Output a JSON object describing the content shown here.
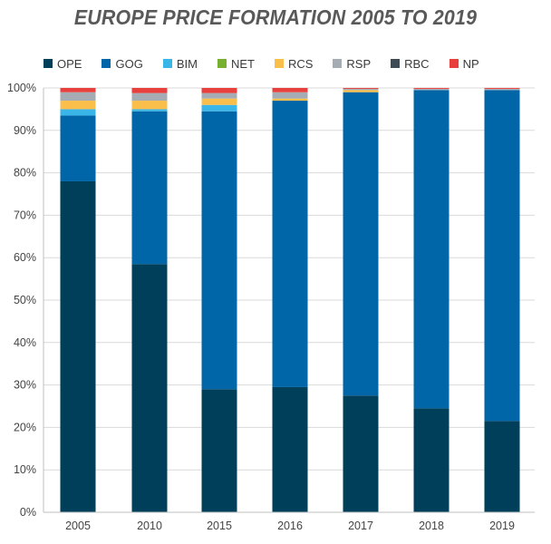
{
  "chart_data": {
    "type": "bar",
    "stacked": true,
    "title": "EUROPE PRICE FORMATION 2005 TO 2019",
    "categories": [
      "2005",
      "2010",
      "2015",
      "2016",
      "2017",
      "2018",
      "2019"
    ],
    "ylim": [
      0,
      100
    ],
    "yticks": [
      "0%",
      "10%",
      "20%",
      "30%",
      "40%",
      "50%",
      "60%",
      "70%",
      "80%",
      "90%",
      "100%"
    ],
    "grid": true,
    "legend_position": "top",
    "series": [
      {
        "name": "OPE",
        "color": "#003f5a",
        "values": [
          78,
          58.5,
          29,
          29.5,
          27.5,
          24.5,
          21.5
        ]
      },
      {
        "name": "GOG",
        "color": "#0066a8",
        "values": [
          15.5,
          36,
          65.5,
          67.5,
          71.5,
          75,
          78
        ]
      },
      {
        "name": "BIM",
        "color": "#3ab5e8",
        "values": [
          1.5,
          0.5,
          1.5,
          0,
          0,
          0,
          0
        ]
      },
      {
        "name": "NET",
        "color": "#77b030",
        "values": [
          0,
          0,
          0,
          0,
          0,
          0,
          0
        ]
      },
      {
        "name": "RCS",
        "color": "#f9bf4a",
        "values": [
          2,
          2,
          1.5,
          0.5,
          0.5,
          0,
          0
        ]
      },
      {
        "name": "RSP",
        "color": "#a6acb4",
        "values": [
          2,
          1.8,
          1.3,
          1.5,
          0.3,
          0.3,
          0.3
        ]
      },
      {
        "name": "RBC",
        "color": "#3e4a54",
        "values": [
          0,
          0,
          0,
          0,
          0,
          0,
          0
        ]
      },
      {
        "name": "NP",
        "color": "#e8403c",
        "values": [
          1,
          1.2,
          1.2,
          1,
          0.2,
          0.2,
          0.2
        ]
      }
    ]
  }
}
